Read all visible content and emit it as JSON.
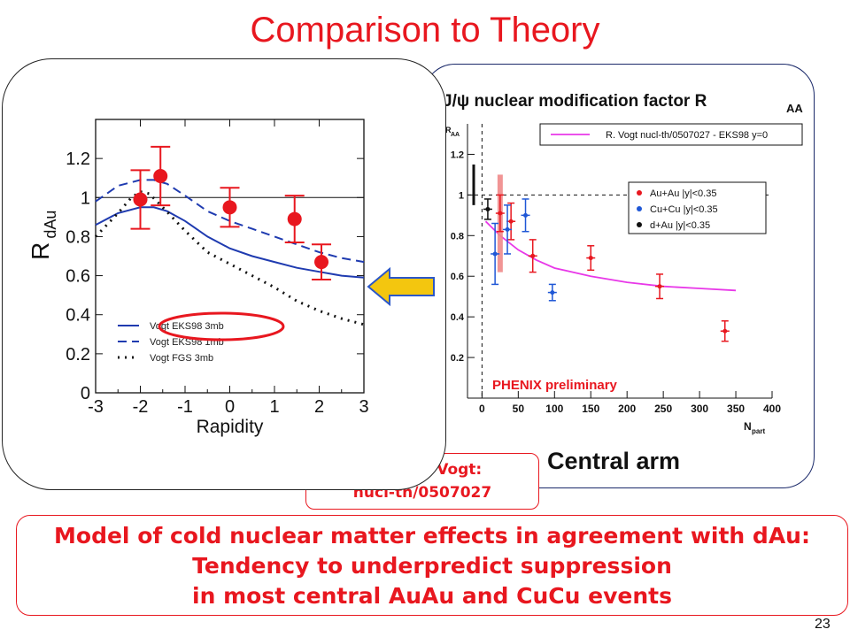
{
  "slide": {
    "title": "Comparison to Theory",
    "ref_line1": "Ramona Vogt:",
    "ref_line2": "nucl-th/0507027",
    "central_arm": "Central arm",
    "conclusion": [
      "Model of cold nuclear matter effects in agreement with dAu:",
      "Tendency to underpredict suppression",
      "in most central AuAu and CuCu events"
    ],
    "page_number": "23",
    "colors": {
      "accent": "#e8171f",
      "arrow_fill": "#f3c60f",
      "arrow_stroke": "#2b57c8"
    },
    "arrow_icon": "left-arrow-icon"
  },
  "chart_data": [
    {
      "type": "scatter",
      "xlabel": "Rapidity",
      "ylabel": "R",
      "ylabel_sub": "dAu",
      "xlim": [
        -3,
        3
      ],
      "ylim": [
        0,
        1.4
      ],
      "x_ticks": [
        -3,
        -2,
        -1,
        0,
        1,
        2,
        3
      ],
      "y_ticks": [
        0,
        0.2,
        0.4,
        0.6,
        0.8,
        1,
        1.2
      ],
      "reference_line": 1,
      "points": [
        {
          "x": -2.0,
          "y": 0.99,
          "err": 0.15
        },
        {
          "x": -1.55,
          "y": 1.11,
          "err": 0.15
        },
        {
          "x": 0.0,
          "y": 0.95,
          "err": 0.1
        },
        {
          "x": 1.45,
          "y": 0.89,
          "err": 0.12
        },
        {
          "x": 2.05,
          "y": 0.67,
          "err": 0.09
        }
      ],
      "point_color": "#e8171f",
      "series": [
        {
          "name": "Vogt EKS98 3mb",
          "style": "solid",
          "color": "#1f3bb0",
          "x": [
            -3,
            -2.5,
            -2,
            -1.7,
            -1.4,
            -1,
            -0.5,
            0,
            0.5,
            1,
            1.5,
            2,
            2.5,
            3
          ],
          "y": [
            0.86,
            0.92,
            0.95,
            0.95,
            0.93,
            0.88,
            0.8,
            0.74,
            0.7,
            0.67,
            0.64,
            0.62,
            0.6,
            0.59
          ]
        },
        {
          "name": "Vogt EKS98 1mb",
          "style": "dashed",
          "color": "#1f3bb0",
          "x": [
            -3,
            -2.5,
            -2,
            -1.7,
            -1.4,
            -1,
            -0.5,
            0,
            0.5,
            1,
            1.5,
            2,
            2.5,
            3
          ],
          "y": [
            0.98,
            1.06,
            1.09,
            1.09,
            1.07,
            1.01,
            0.93,
            0.88,
            0.84,
            0.8,
            0.76,
            0.72,
            0.69,
            0.67
          ]
        },
        {
          "name": "Vogt FGS 3mb",
          "style": "dotted",
          "color": "#111111",
          "x": [
            -3,
            -2.5,
            -2.2,
            -2,
            -1.8,
            -1.5,
            -1,
            -0.5,
            0,
            0.5,
            1,
            1.5,
            2,
            2.5,
            3
          ],
          "y": [
            0.8,
            0.92,
            1.0,
            1.03,
            1.02,
            0.95,
            0.83,
            0.72,
            0.66,
            0.6,
            0.54,
            0.47,
            0.42,
            0.38,
            0.35
          ]
        }
      ],
      "legend": [
        {
          "label": "Vogt EKS98 3mb",
          "style": "solid"
        },
        {
          "label": "Vogt EKS98 1mb",
          "style": "dashed"
        },
        {
          "label": "Vogt FGS 3mb",
          "style": "dotted"
        }
      ]
    },
    {
      "type": "scatter",
      "title": "J/ψ  nuclear modification factor R",
      "title_sub": "AA",
      "ylabel": "R",
      "ylabel_sub": "AA",
      "xlabel": "N",
      "xlabel_sub": "part",
      "xlim": [
        -20,
        400
      ],
      "ylim": [
        0,
        1.35
      ],
      "x_ticks": [
        0,
        50,
        100,
        150,
        200,
        250,
        300,
        350,
        400
      ],
      "y_ticks": [
        0.2,
        0.4,
        0.6,
        0.8,
        1,
        1.2
      ],
      "reference_line": 1,
      "preliminary_label": "PHENIX preliminary",
      "theory": {
        "name": "R. Vogt nucl-th/0507027 - EKS98 y=0",
        "color": "#e838e8",
        "x": [
          5,
          25,
          50,
          75,
          100,
          150,
          200,
          250,
          300,
          350
        ],
        "y": [
          0.87,
          0.8,
          0.73,
          0.68,
          0.64,
          0.6,
          0.57,
          0.55,
          0.54,
          0.53
        ]
      },
      "series": [
        {
          "name": "Au+Au |y|<0.35",
          "color": "#e8171f",
          "points": [
            {
              "x": 25,
              "y": 0.91,
              "err": 0.09
            },
            {
              "x": 40,
              "y": 0.87,
              "err": 0.09
            },
            {
              "x": 70,
              "y": 0.7,
              "err": 0.08
            },
            {
              "x": 150,
              "y": 0.69,
              "err": 0.06
            },
            {
              "x": 245,
              "y": 0.55,
              "err": 0.06
            },
            {
              "x": 335,
              "y": 0.33,
              "err": 0.05
            }
          ]
        },
        {
          "name": "Cu+Cu |y|<0.35",
          "color": "#1f57d6",
          "points": [
            {
              "x": 18,
              "y": 0.71,
              "err": 0.15
            },
            {
              "x": 35,
              "y": 0.83,
              "err": 0.12
            },
            {
              "x": 60,
              "y": 0.9,
              "err": 0.08
            },
            {
              "x": 97,
              "y": 0.52,
              "err": 0.04
            }
          ]
        },
        {
          "name": "d+Au |y|<0.35",
          "color": "#111111",
          "points": [
            {
              "x": 8,
              "y": 0.93,
              "err": 0.05
            }
          ]
        }
      ]
    }
  ]
}
